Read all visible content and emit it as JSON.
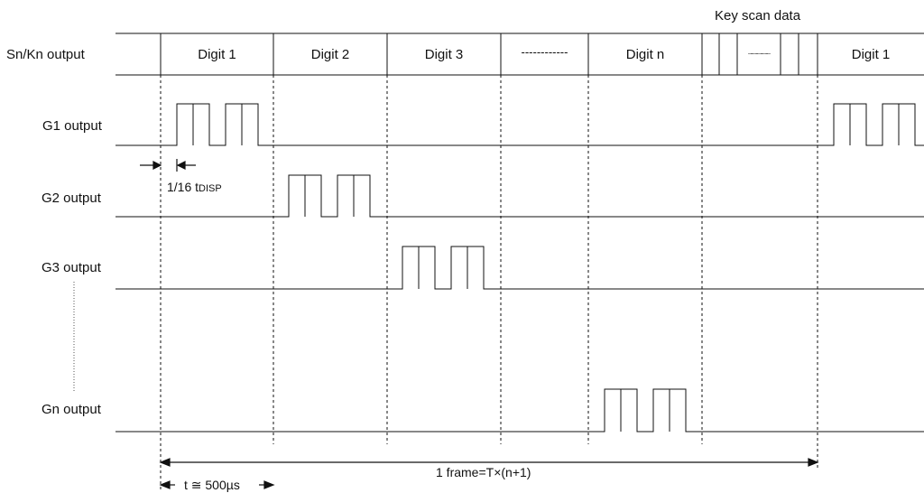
{
  "signals": {
    "sn_kn": "Sn/Kn output",
    "g1": "G1 output",
    "g2": "G2 output",
    "g3": "G3 output",
    "gn": "Gn output"
  },
  "segments": {
    "digit1": "Digit 1",
    "digit2": "Digit 2",
    "digit3": "Digit 3",
    "dots": "------------",
    "digit_n": "Digit n",
    "digit1_repeat": "Digit 1"
  },
  "key_scan": {
    "label": "Key scan data",
    "dots": "...................."
  },
  "annotations": {
    "pulse_width_main": "1/16 t",
    "pulse_width_sub": "DISP",
    "frame": "1 frame=T×(n+1)",
    "period": "t ≅ 500µs"
  }
}
